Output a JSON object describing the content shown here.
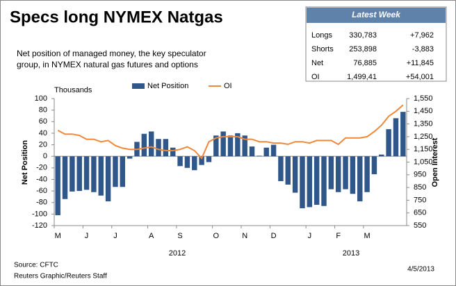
{
  "chart_data": {
    "type": "bar",
    "title": "Specs long NYMEX Natgas",
    "subtitle": [
      "Net position of managed money, the key speculator",
      "group, in NYMEX natural gas futures and options"
    ],
    "unit_label": "Thousands",
    "y_label": "Net Position",
    "y2_label": "Open Interest",
    "categories": [
      "M",
      null,
      null,
      null,
      "J",
      null,
      null,
      null,
      "J",
      null,
      null,
      null,
      null,
      "A",
      null,
      null,
      null,
      "S",
      null,
      null,
      null,
      null,
      "O",
      null,
      null,
      null,
      "N",
      null,
      null,
      null,
      "D",
      null,
      null,
      null,
      null,
      "J",
      null,
      null,
      null,
      "F",
      null,
      null,
      null,
      "M",
      null,
      null,
      null,
      null,
      null
    ],
    "year_labels": [
      "2012",
      "2013"
    ],
    "series": [
      {
        "name": "Net Position",
        "type": "bar",
        "color": "#30578a",
        "values": [
          -102,
          -74,
          -61,
          -60,
          -58,
          -62,
          -68,
          -78,
          -53,
          -53,
          -4,
          25,
          39,
          43,
          30,
          30,
          15,
          -17,
          -20,
          -24,
          -15,
          -10,
          36,
          43,
          36,
          40,
          36,
          17,
          1,
          15,
          20,
          -43,
          -49,
          -63,
          -90,
          -88,
          -84,
          -86,
          -57,
          -62,
          -57,
          -65,
          -78,
          -62,
          -31,
          3,
          47,
          66,
          77
        ]
      },
      {
        "name": "OI",
        "type": "line",
        "axis": "y2",
        "color": "#f0883a",
        "values": [
          1300,
          1270,
          1270,
          1260,
          1230,
          1230,
          1210,
          1220,
          1180,
          1160,
          1150,
          1150,
          1160,
          1170,
          1150,
          1140,
          1140,
          1150,
          1170,
          1140,
          1080,
          1210,
          1240,
          1250,
          1250,
          1250,
          1230,
          1230,
          1210,
          1210,
          1200,
          1200,
          1190,
          1210,
          1210,
          1200,
          1220,
          1220,
          1220,
          1190,
          1240,
          1240,
          1240,
          1250,
          1290,
          1340,
          1410,
          1450,
          1500
        ]
      }
    ],
    "ylim": [
      -120,
      100
    ],
    "yticks": [
      -120,
      -100,
      -80,
      -60,
      -40,
      -20,
      0,
      20,
      40,
      60,
      80,
      100
    ],
    "y2lim": [
      550,
      1550
    ],
    "y2ticks": [
      550,
      650,
      750,
      850,
      950,
      {
        "value": 1050,
        "label": "1,050"
      },
      {
        "value": 1150,
        "label": "1,150"
      },
      {
        "value": 1250,
        "label": "1,250"
      },
      {
        "value": 1350,
        "label": "1,350"
      },
      {
        "value": 1450,
        "label": "1,450"
      },
      {
        "value": 1550,
        "label": "1,550"
      }
    ],
    "legend": "top",
    "source": "Source: CFTC",
    "credit": "Reuters Graphic/Reuters Staff",
    "date": "4/5/2013"
  },
  "table": {
    "title": "Latest Week",
    "rows": [
      [
        "Longs",
        "330,783",
        "+7,962"
      ],
      [
        "Shorts",
        "253,898",
        "-3,883"
      ],
      [
        "Net",
        "76,885",
        "+11,845"
      ],
      [
        "OI",
        "1,499,41",
        "+54,001"
      ]
    ]
  }
}
